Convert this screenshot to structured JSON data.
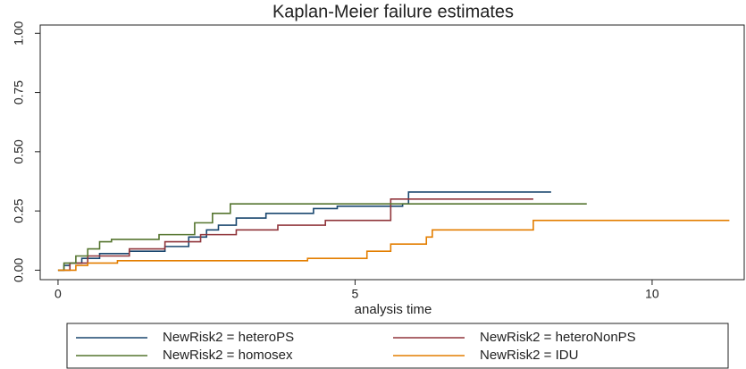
{
  "chart_data": {
    "type": "line",
    "step": true,
    "title": "Kaplan-Meier failure estimates",
    "x_label": "analysis time",
    "xlim": [
      -0.3,
      11.55
    ],
    "ylim": [
      -0.04,
      1.035
    ],
    "xticks": [
      0,
      5,
      10
    ],
    "yticks": [
      {
        "value": 0,
        "label": "0.00"
      },
      {
        "value": 0.25,
        "label": "0.25"
      },
      {
        "value": 0.5,
        "label": "0.50"
      },
      {
        "value": 0.75,
        "label": "0.75"
      },
      {
        "value": 1,
        "label": "1.00"
      }
    ],
    "grid": false,
    "legend": "bottom",
    "series": [
      {
        "name": "NewRisk2 = heteroPS",
        "color": "#1a476f",
        "x": [
          0,
          0.1,
          0.2,
          0.4,
          0.7,
          1.2,
          1.8,
          2.2,
          2.5,
          2.7,
          3.0,
          3.5,
          4.3,
          4.7,
          5.8,
          5.9,
          8.3
        ],
        "values": [
          0,
          0.02,
          0.03,
          0.05,
          0.07,
          0.08,
          0.1,
          0.14,
          0.17,
          0.19,
          0.22,
          0.24,
          0.26,
          0.27,
          0.28,
          0.33,
          0.33
        ]
      },
      {
        "name": "NewRisk2 = heteroNonPS",
        "color": "#90353b",
        "x": [
          0,
          0.2,
          0.5,
          1.2,
          1.8,
          2.4,
          3.0,
          3.7,
          4.5,
          5.6,
          8.0
        ],
        "values": [
          0,
          0.03,
          0.06,
          0.09,
          0.12,
          0.15,
          0.17,
          0.19,
          0.21,
          0.3,
          0.3
        ]
      },
      {
        "name": "NewRisk2 = homosex",
        "color": "#55752f",
        "x": [
          0,
          0.1,
          0.3,
          0.5,
          0.7,
          0.9,
          1.7,
          2.3,
          2.6,
          2.9,
          8.9
        ],
        "values": [
          0,
          0.03,
          0.06,
          0.09,
          0.12,
          0.13,
          0.15,
          0.2,
          0.24,
          0.28,
          0.28
        ]
      },
      {
        "name": "NewRisk2 = IDU",
        "color": "#e37e00",
        "x": [
          0,
          0.3,
          0.5,
          1.0,
          4.2,
          5.2,
          5.6,
          6.2,
          6.3,
          8.0,
          11.3
        ],
        "values": [
          0,
          0.02,
          0.03,
          0.04,
          0.05,
          0.08,
          0.11,
          0.14,
          0.17,
          0.21,
          0.21
        ]
      }
    ]
  }
}
